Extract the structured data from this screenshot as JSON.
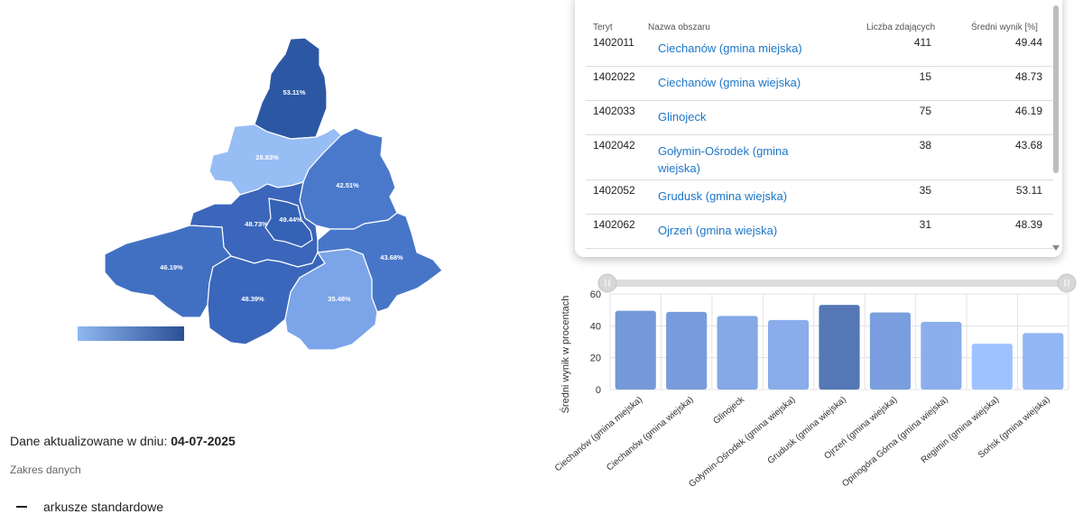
{
  "map": {
    "regions": [
      {
        "id": "grudusk",
        "label": "53.11%",
        "color": "#2c58a3"
      },
      {
        "id": "regimin",
        "label": "28.83%",
        "color": "#97bdf5"
      },
      {
        "id": "opinogora",
        "label": "42.51%",
        "color": "#4a79cc"
      },
      {
        "id": "ciechanow-wiejska",
        "label": "48.73%",
        "color": "#3b66bb"
      },
      {
        "id": "ciechanow-miejska",
        "label": "49.44%",
        "color": "#3562b5"
      },
      {
        "id": "glinojeck",
        "label": "46.19%",
        "color": "#4170c3"
      },
      {
        "id": "golymin",
        "label": "43.68%",
        "color": "#4776c9"
      },
      {
        "id": "ojrzen",
        "label": "48.39%",
        "color": "#3a67bc"
      },
      {
        "id": "sonsk",
        "label": "35.48%",
        "color": "#7ba5e8"
      }
    ]
  },
  "info": {
    "updated_label": "Dane aktualizowane w dniu: ",
    "updated_date": "04-07-2025",
    "scope_title": "Zakres danych",
    "scope_item": "arkusze standardowe"
  },
  "table": {
    "headers": [
      "Teryt",
      "Nazwa obszaru",
      "Liczba zdających",
      "Średni wynik [%]"
    ],
    "rows": [
      {
        "teryt": "1402011",
        "name": "Ciechanów (gmina miejska)",
        "count": "411",
        "score": "49.44"
      },
      {
        "teryt": "1402022",
        "name": "Ciechanów (gmina wiejska)",
        "count": "15",
        "score": "48.73"
      },
      {
        "teryt": "1402033",
        "name": "Glinojeck",
        "count": "75",
        "score": "46.19"
      },
      {
        "teryt": "1402042",
        "name": "Gołymin-Ośrodek (gmina wiejska)",
        "count": "38",
        "score": "43.68"
      },
      {
        "teryt": "1402052",
        "name": "Grudusk (gmina wiejska)",
        "count": "35",
        "score": "53.11"
      },
      {
        "teryt": "1402062",
        "name": "Ojrzeń (gmina wiejska)",
        "count": "31",
        "score": "48.39"
      }
    ]
  },
  "chart_data": {
    "type": "bar",
    "categories": [
      "Ciechanów (gmina miejska)",
      "Ciechanów (gmina wiejska)",
      "Glinojeck",
      "Gołymin-Ośrodek (gmina wiejska)",
      "Grudusk (gmina wiejska)",
      "Ojrzeń (gmina wiejska)",
      "Opinogóra Górna (gmina wiejska)",
      "Regimin (gmina wiejska)",
      "Sońsk (gmina wiejska)"
    ],
    "values": [
      49.44,
      48.73,
      46.19,
      43.68,
      53.11,
      48.39,
      42.51,
      28.83,
      35.48
    ],
    "colors": [
      "#7598d8",
      "#789cdb",
      "#85a8e6",
      "#8aaceb",
      "#5677b5",
      "#7a9edd",
      "#8caeec",
      "#9fc2ff",
      "#93b6f4"
    ],
    "ylabel": "Średni wynik w procentach",
    "xlabel": "",
    "ylim": [
      0,
      60
    ],
    "yticks": [
      0,
      20,
      40,
      60
    ],
    "grid": true
  }
}
